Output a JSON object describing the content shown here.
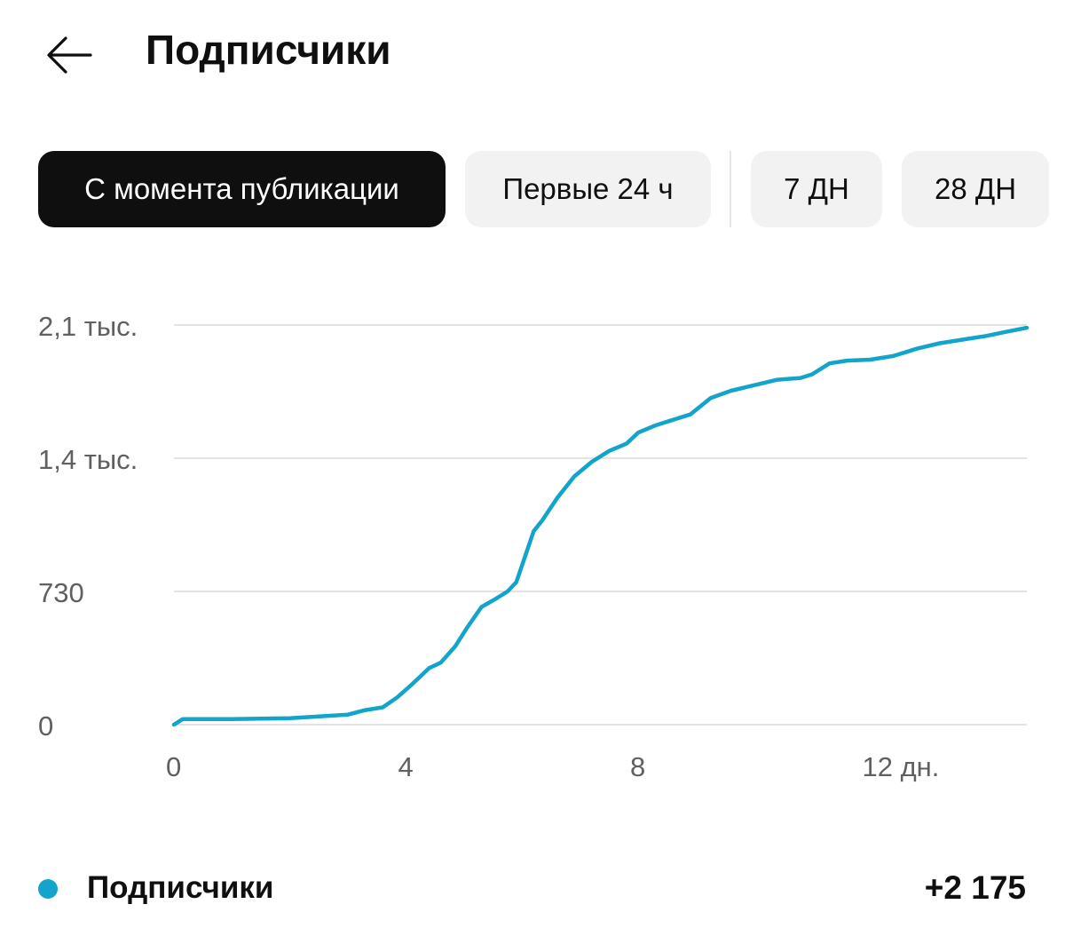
{
  "header": {
    "title": "Подписчики",
    "back_icon": "arrow-left-icon"
  },
  "filters": [
    {
      "label": "С момента публикации",
      "active": true
    },
    {
      "label": "Первые 24 ч",
      "active": false
    },
    {
      "label": "7 ДН",
      "active": false
    },
    {
      "label": "28 ДН",
      "active": false
    }
  ],
  "colors": {
    "series": "#12a4cb",
    "active_chip_bg": "#0f0f0f",
    "chip_bg": "#f2f2f2",
    "grid": "#e3e3e3",
    "axis_text": "#606060"
  },
  "chart_data": {
    "type": "line",
    "title": "",
    "xlabel": "",
    "ylabel": "",
    "xlim": [
      0,
      14.7
    ],
    "ylim": [
      0,
      2190
    ],
    "x_ticks": [
      0,
      4,
      8,
      12
    ],
    "x_tick_labels": [
      "0",
      "4",
      "8",
      "12 дн."
    ],
    "y_ticks": [
      0,
      730,
      1460,
      2190
    ],
    "y_tick_labels": [
      "0",
      "730",
      "1,4 тыс.",
      "2,1 тыс."
    ],
    "grid": true,
    "series": [
      {
        "name": "Подписчики",
        "x": [
          0,
          0.15,
          1.0,
          2.0,
          2.5,
          3.0,
          3.3,
          3.6,
          3.85,
          4.1,
          4.4,
          4.6,
          4.85,
          5.05,
          5.3,
          5.55,
          5.75,
          5.9,
          6.05,
          6.2,
          6.35,
          6.6,
          6.9,
          7.2,
          7.5,
          7.8,
          8.0,
          8.3,
          8.6,
          8.9,
          9.25,
          9.6,
          10.0,
          10.4,
          10.8,
          11.0,
          11.3,
          11.6,
          12.0,
          12.4,
          12.8,
          13.2,
          13.6,
          14.0,
          14.3,
          14.7
        ],
        "values": [
          0,
          30,
          30,
          35,
          45,
          55,
          80,
          95,
          150,
          220,
          310,
          340,
          430,
          530,
          645,
          690,
          730,
          780,
          920,
          1060,
          1120,
          1240,
          1360,
          1440,
          1500,
          1540,
          1600,
          1640,
          1670,
          1700,
          1790,
          1830,
          1860,
          1890,
          1900,
          1920,
          1980,
          1995,
          2000,
          2020,
          2060,
          2090,
          2110,
          2130,
          2150,
          2175
        ]
      }
    ]
  },
  "legend": {
    "label": "Подписчики",
    "value": "+2 175"
  }
}
